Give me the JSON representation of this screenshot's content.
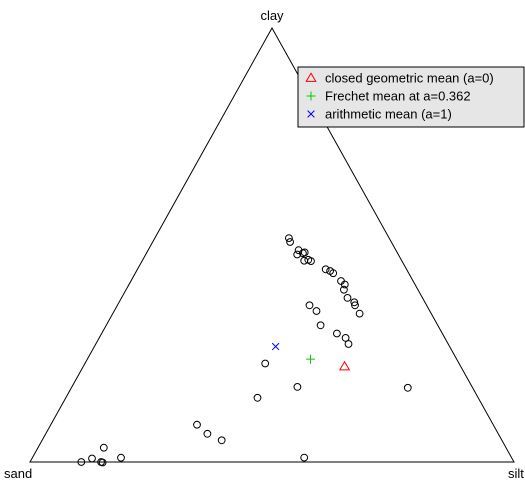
{
  "chart_data": {
    "type": "scatter",
    "subtype": "ternary",
    "vertices": {
      "top": "clay",
      "left": "sand",
      "right": "silt"
    },
    "title": "",
    "legend": {
      "placement": "top-right",
      "entries": [
        {
          "label": "closed geometric mean (a=0)",
          "marker": "triangle",
          "color": "#ff0000"
        },
        {
          "label": "Frechet mean at a=0.362",
          "marker": "plus",
          "color": "#00cc00"
        },
        {
          "label": "arithmetic mean (a=1)",
          "marker": "x",
          "color": "#0000ff"
        }
      ]
    },
    "means": [
      {
        "name": "closed geometric mean (a=0)",
        "sand": 0.24,
        "silt": 0.54,
        "clay": 0.22,
        "marker": "triangle",
        "color": "#ff0000"
      },
      {
        "name": "Frechet mean at a=0.362",
        "sand": 0.302,
        "silt": 0.461,
        "clay": 0.237,
        "marker": "plus",
        "color": "#00cc00"
      },
      {
        "name": "arithmetic mean (a=1)",
        "sand": 0.359,
        "silt": 0.375,
        "clay": 0.265,
        "marker": "x",
        "color": "#0000ff"
      }
    ],
    "points": [
      {
        "sand": 0.209,
        "silt": 0.284,
        "clay": 0.507
      },
      {
        "sand": 0.207,
        "silt": 0.277,
        "clay": 0.516
      },
      {
        "sand": 0.209,
        "silt": 0.313,
        "clay": 0.478
      },
      {
        "sand": 0.201,
        "silt": 0.311,
        "clay": 0.488
      },
      {
        "sand": 0.191,
        "silt": 0.326,
        "clay": 0.483
      },
      {
        "sand": 0.195,
        "silt": 0.324,
        "clay": 0.48
      },
      {
        "sand": 0.202,
        "silt": 0.334,
        "clay": 0.465
      },
      {
        "sand": 0.192,
        "silt": 0.342,
        "clay": 0.466
      },
      {
        "sand": 0.188,
        "silt": 0.349,
        "clay": 0.463
      },
      {
        "sand": 0.167,
        "silt": 0.389,
        "clay": 0.444
      },
      {
        "sand": 0.16,
        "silt": 0.4,
        "clay": 0.44
      },
      {
        "sand": 0.156,
        "silt": 0.409,
        "clay": 0.435
      },
      {
        "sand": 0.149,
        "silt": 0.434,
        "clay": 0.417
      },
      {
        "sand": 0.145,
        "silt": 0.446,
        "clay": 0.409
      },
      {
        "sand": 0.153,
        "silt": 0.45,
        "clay": 0.397
      },
      {
        "sand": 0.155,
        "silt": 0.467,
        "clay": 0.378
      },
      {
        "sand": 0.146,
        "silt": 0.486,
        "clay": 0.368
      },
      {
        "sand": 0.148,
        "silt": 0.491,
        "clay": 0.361
      },
      {
        "sand": 0.148,
        "silt": 0.51,
        "clay": 0.342
      },
      {
        "sand": 0.242,
        "silt": 0.397,
        "clay": 0.361
      },
      {
        "sand": 0.234,
        "silt": 0.418,
        "clay": 0.348
      },
      {
        "sand": 0.242,
        "silt": 0.443,
        "clay": 0.315
      },
      {
        "sand": 0.218,
        "silt": 0.486,
        "clay": 0.296
      },
      {
        "sand": 0.205,
        "silt": 0.509,
        "clay": 0.286
      },
      {
        "sand": 0.206,
        "silt": 0.522,
        "clay": 0.272
      },
      {
        "sand": 0.4,
        "silt": 0.373,
        "clay": 0.226
      },
      {
        "sand": 0.361,
        "silt": 0.466,
        "clay": 0.173
      },
      {
        "sand": 0.134,
        "silt": 0.695,
        "clay": 0.171
      },
      {
        "sand": 0.456,
        "silt": 0.396,
        "clay": 0.148
      },
      {
        "sand": 0.612,
        "silt": 0.302,
        "clay": 0.086
      },
      {
        "sand": 0.601,
        "silt": 0.334,
        "clay": 0.065
      },
      {
        "sand": 0.579,
        "silt": 0.371,
        "clay": 0.05
      },
      {
        "sand": 0.831,
        "silt": 0.136,
        "clay": 0.033
      },
      {
        "sand": 0.868,
        "silt": 0.124,
        "clay": 0.008
      },
      {
        "sand": 0.894,
        "silt": 0.106,
        "clay": 0.0
      },
      {
        "sand": 0.853,
        "silt": 0.147,
        "clay": 0.0
      },
      {
        "sand": 0.851,
        "silt": 0.15,
        "clay": 0.0
      },
      {
        "sand": 0.807,
        "silt": 0.183,
        "clay": 0.01
      },
      {
        "sand": 0.428,
        "silt": 0.562,
        "clay": 0.009
      }
    ]
  }
}
